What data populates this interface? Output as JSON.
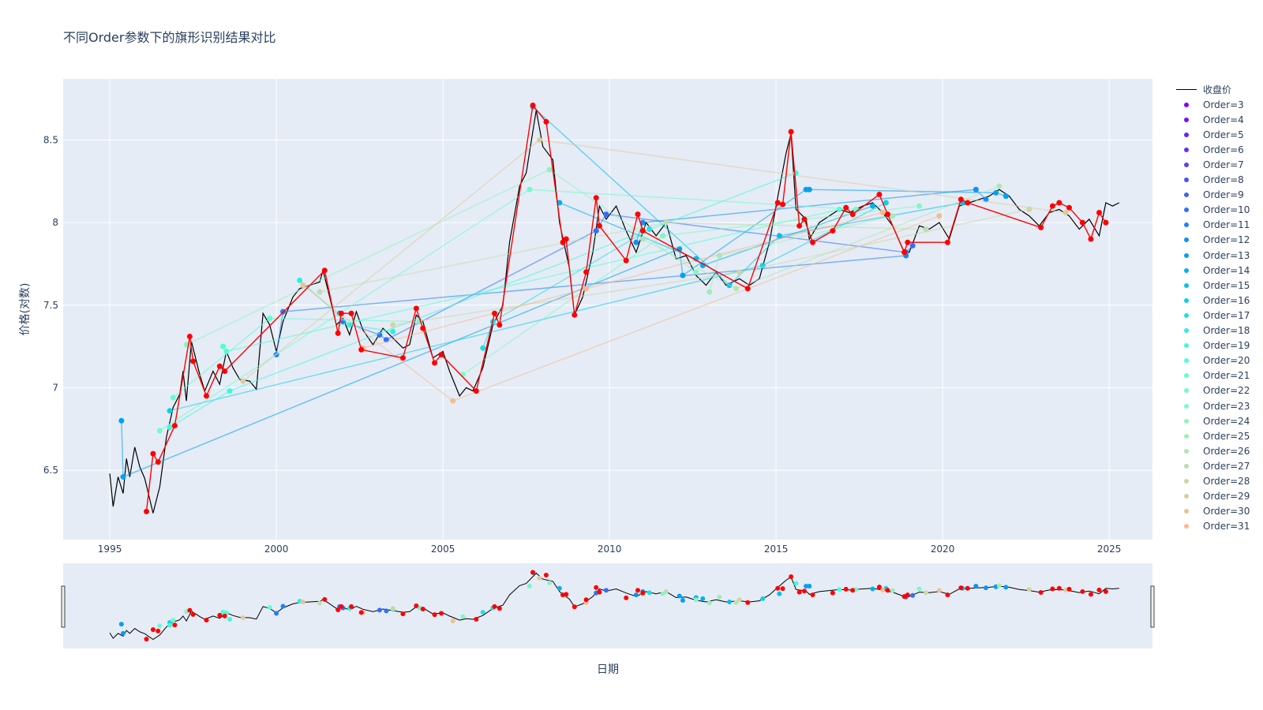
{
  "chart_data": {
    "type": "line",
    "title": "不同Order参数下的旗形识别结果对比",
    "xlabel": "日期",
    "ylabel": "价格(对数)",
    "x_ticks": [
      "1995",
      "2000",
      "2005",
      "2010",
      "2015",
      "2020",
      "2025"
    ],
    "y_ticks": [
      "6.5",
      "7",
      "7.5",
      "8",
      "8.5"
    ],
    "xlim": [
      1993.6,
      2026.3
    ],
    "ylim": [
      6.08,
      8.87
    ],
    "grid": true,
    "legend_position": "right",
    "rangeslider": true,
    "close_series": {
      "name": "收盘价",
      "color": "#000000",
      "points": [
        [
          1995.0,
          6.48
        ],
        [
          1995.1,
          6.28
        ],
        [
          1995.25,
          6.46
        ],
        [
          1995.4,
          6.36
        ],
        [
          1995.5,
          6.57
        ],
        [
          1995.6,
          6.46
        ],
        [
          1995.75,
          6.64
        ],
        [
          1995.9,
          6.52
        ],
        [
          1996.05,
          6.45
        ],
        [
          1996.3,
          6.24
        ],
        [
          1996.5,
          6.4
        ],
        [
          1996.7,
          6.7
        ],
        [
          1996.9,
          6.88
        ],
        [
          1997.1,
          6.96
        ],
        [
          1997.2,
          7.1
        ],
        [
          1997.3,
          6.92
        ],
        [
          1997.45,
          7.28
        ],
        [
          1997.7,
          7.08
        ],
        [
          1997.85,
          6.98
        ],
        [
          1998.1,
          7.1
        ],
        [
          1998.3,
          7.02
        ],
        [
          1998.5,
          7.22
        ],
        [
          1998.7,
          7.12
        ],
        [
          1998.9,
          7.05
        ],
        [
          1999.2,
          7.04
        ],
        [
          1999.4,
          6.99
        ],
        [
          1999.6,
          7.45
        ],
        [
          1999.8,
          7.38
        ],
        [
          2000.0,
          7.22
        ],
        [
          2000.2,
          7.4
        ],
        [
          2000.5,
          7.55
        ],
        [
          2000.7,
          7.6
        ],
        [
          2001.0,
          7.62
        ],
        [
          2001.3,
          7.64
        ],
        [
          2001.4,
          7.71
        ],
        [
          2001.6,
          7.55
        ],
        [
          2001.8,
          7.38
        ],
        [
          2002.0,
          7.42
        ],
        [
          2002.2,
          7.32
        ],
        [
          2002.4,
          7.46
        ],
        [
          2002.6,
          7.35
        ],
        [
          2002.9,
          7.26
        ],
        [
          2003.2,
          7.36
        ],
        [
          2003.5,
          7.3
        ],
        [
          2003.8,
          7.24
        ],
        [
          2004.0,
          7.26
        ],
        [
          2004.2,
          7.44
        ],
        [
          2004.4,
          7.4
        ],
        [
          2004.7,
          7.18
        ],
        [
          2005.0,
          7.22
        ],
        [
          2005.2,
          7.1
        ],
        [
          2005.5,
          6.95
        ],
        [
          2005.7,
          7.0
        ],
        [
          2005.9,
          6.98
        ],
        [
          2006.2,
          7.12
        ],
        [
          2006.5,
          7.38
        ],
        [
          2006.8,
          7.5
        ],
        [
          2007.0,
          7.88
        ],
        [
          2007.3,
          8.22
        ],
        [
          2007.5,
          8.3
        ],
        [
          2007.8,
          8.68
        ],
        [
          2008.0,
          8.46
        ],
        [
          2008.3,
          8.38
        ],
        [
          2008.5,
          8.0
        ],
        [
          2008.8,
          7.72
        ],
        [
          2008.95,
          7.44
        ],
        [
          2009.2,
          7.55
        ],
        [
          2009.5,
          7.82
        ],
        [
          2009.7,
          8.1
        ],
        [
          2009.9,
          8.02
        ],
        [
          2010.2,
          8.1
        ],
        [
          2010.5,
          7.95
        ],
        [
          2010.8,
          7.82
        ],
        [
          2011.1,
          8.0
        ],
        [
          2011.4,
          7.92
        ],
        [
          2011.7,
          8.0
        ],
        [
          2012.0,
          7.78
        ],
        [
          2012.3,
          7.8
        ],
        [
          2012.6,
          7.68
        ],
        [
          2012.9,
          7.62
        ],
        [
          2013.2,
          7.7
        ],
        [
          2013.5,
          7.62
        ],
        [
          2013.9,
          7.66
        ],
        [
          2014.2,
          7.62
        ],
        [
          2014.5,
          7.66
        ],
        [
          2014.8,
          7.88
        ],
        [
          2015.0,
          8.1
        ],
        [
          2015.3,
          8.42
        ],
        [
          2015.45,
          8.54
        ],
        [
          2015.6,
          8.08
        ],
        [
          2015.9,
          8.02
        ],
        [
          2016.0,
          7.9
        ],
        [
          2016.3,
          8.0
        ],
        [
          2016.6,
          8.04
        ],
        [
          2016.9,
          8.08
        ],
        [
          2017.2,
          8.06
        ],
        [
          2017.6,
          8.1
        ],
        [
          2017.9,
          8.12
        ],
        [
          2018.2,
          8.06
        ],
        [
          2018.5,
          7.98
        ],
        [
          2018.8,
          7.84
        ],
        [
          2019.0,
          7.82
        ],
        [
          2019.3,
          7.98
        ],
        [
          2019.6,
          7.96
        ],
        [
          2019.9,
          8.0
        ],
        [
          2020.2,
          7.9
        ],
        [
          2020.5,
          8.1
        ],
        [
          2020.8,
          8.12
        ],
        [
          2021.1,
          8.14
        ],
        [
          2021.4,
          8.16
        ],
        [
          2021.7,
          8.2
        ],
        [
          2022.0,
          8.16
        ],
        [
          2022.3,
          8.08
        ],
        [
          2022.6,
          8.04
        ],
        [
          2022.9,
          7.98
        ],
        [
          2023.2,
          8.06
        ],
        [
          2023.5,
          8.08
        ],
        [
          2023.8,
          8.04
        ],
        [
          2024.1,
          7.96
        ],
        [
          2024.4,
          8.02
        ],
        [
          2024.7,
          7.92
        ],
        [
          2024.9,
          8.12
        ],
        [
          2025.1,
          8.1
        ],
        [
          2025.3,
          8.12
        ]
      ]
    },
    "flag_series": [
      {
        "name": "Order=3",
        "color": "#8000ff",
        "points": []
      },
      {
        "name": "Order=4",
        "color": "#7610ff",
        "points": []
      },
      {
        "name": "Order=5",
        "color": "#6c20ff",
        "points": []
      },
      {
        "name": "Order=6",
        "color": "#6230fe",
        "points": []
      },
      {
        "name": "Order=7",
        "color": "#5840fd",
        "points": []
      },
      {
        "name": "Order=8",
        "color": "#4c50fc",
        "points": []
      },
      {
        "name": "Order=9",
        "color": "#405ffa",
        "points": []
      },
      {
        "name": "Order=10",
        "color": "#3070f9",
        "points": [
          [
            2003.1,
            7.32
          ],
          [
            2003.3,
            7.29
          ],
          [
            2009.6,
            7.95
          ],
          [
            2009.9,
            8.05
          ],
          [
            2018.9,
            7.82
          ],
          [
            2019.1,
            7.86
          ],
          [
            2001.9,
            7.45
          ],
          [
            2002.0,
            7.4
          ]
        ]
      },
      {
        "name": "Order=11",
        "color": "#2080f7",
        "points": [
          [
            2000.0,
            7.2
          ],
          [
            2000.2,
            7.46
          ],
          [
            2018.9,
            7.8
          ]
        ]
      },
      {
        "name": "Order=12",
        "color": "#1090f5",
        "points": [
          [
            2010.8,
            7.88
          ],
          [
            2011.0,
            8.0
          ],
          [
            2021.0,
            8.2
          ],
          [
            2021.3,
            8.14
          ]
        ]
      },
      {
        "name": "Order=13",
        "color": "#00a0f2",
        "points": [
          [
            1995.35,
            6.8
          ],
          [
            1995.4,
            6.46
          ],
          [
            2012.1,
            7.84
          ],
          [
            2012.2,
            7.68
          ],
          [
            2015.9,
            8.2
          ],
          [
            2016.0,
            8.2
          ],
          [
            2021.6,
            8.18
          ],
          [
            2021.9,
            8.16
          ]
        ]
      },
      {
        "name": "Order=14",
        "color": "#00b0ee",
        "points": [
          [
            2008.5,
            8.12
          ],
          [
            2012.6,
            7.78
          ],
          [
            2012.8,
            7.74
          ],
          [
            2017.9,
            8.1
          ]
        ]
      },
      {
        "name": "Order=15",
        "color": "#00c0ea",
        "points": [
          [
            2007.7,
            8.7
          ],
          [
            2013.6,
            7.62
          ],
          [
            2015.1,
            7.92
          ],
          [
            2020.6,
            8.12
          ]
        ]
      },
      {
        "name": "Order=16",
        "color": "#10cfe6",
        "points": [
          [
            1996.8,
            6.86
          ],
          [
            2014.6,
            7.74
          ],
          [
            2018.3,
            8.12
          ]
        ]
      },
      {
        "name": "Order=17",
        "color": "#20dfe2",
        "points": [
          [
            2006.2,
            7.24
          ],
          [
            2006.5,
            7.4
          ],
          [
            2011.2,
            7.96
          ]
        ]
      },
      {
        "name": "Order=18",
        "color": "#30eede",
        "points": [
          [
            2000.7,
            7.65
          ],
          [
            2002.2,
            7.38
          ],
          [
            2003.5,
            7.34
          ]
        ]
      },
      {
        "name": "Order=19",
        "color": "#40f9d9",
        "points": [
          [
            1996.8,
            6.76
          ],
          [
            1998.6,
            6.98
          ],
          [
            2015.6,
            8.3
          ]
        ]
      },
      {
        "name": "Order=20",
        "color": "#50ffd4",
        "points": [
          [
            1998.4,
            7.25
          ],
          [
            1998.5,
            7.22
          ],
          [
            2016.9,
            8.08
          ]
        ]
      },
      {
        "name": "Order=21",
        "color": "#60fecf",
        "points": [
          [
            1996.9,
            6.94
          ],
          [
            1999.8,
            7.42
          ],
          [
            2004.3,
            7.4
          ]
        ]
      },
      {
        "name": "Order=22",
        "color": "#70fcca",
        "points": [
          [
            1996.5,
            6.74
          ],
          [
            2007.6,
            8.2
          ],
          [
            2017.4,
            8.08
          ]
        ]
      },
      {
        "name": "Order=23",
        "color": "#80f8c4",
        "points": [
          [
            2005.6,
            7.08
          ],
          [
            2011.6,
            7.92
          ],
          [
            2019.3,
            8.1
          ]
        ]
      },
      {
        "name": "Order=24",
        "color": "#8ff3be",
        "points": [
          [
            1997.3,
            7.26
          ],
          [
            2008.2,
            8.32
          ],
          [
            2012.6,
            7.7
          ]
        ]
      },
      {
        "name": "Order=25",
        "color": "#9fedb8",
        "points": [
          [
            2013.0,
            7.58
          ],
          [
            2013.3,
            7.8
          ],
          [
            2018.5,
            8.04
          ]
        ]
      },
      {
        "name": "Order=26",
        "color": "#afe6b1",
        "points": [
          [
            2011.0,
            7.9
          ],
          [
            2013.8,
            7.6
          ],
          [
            2021.7,
            8.22
          ]
        ]
      },
      {
        "name": "Order=27",
        "color": "#bfdeaa",
        "points": [
          [
            2001.3,
            7.58
          ],
          [
            2011.7,
            8.0
          ],
          [
            2019.5,
            7.96
          ]
        ]
      },
      {
        "name": "Order=28",
        "color": "#cfd5a3",
        "points": [
          [
            2003.5,
            7.38
          ],
          [
            2013.9,
            7.7
          ],
          [
            2022.6,
            8.08
          ]
        ]
      },
      {
        "name": "Order=29",
        "color": "#dfcb9b",
        "points": [
          [
            1999.0,
            7.04
          ],
          [
            2007.9,
            8.5
          ],
          [
            2023.7,
            8.06
          ]
        ]
      },
      {
        "name": "Order=30",
        "color": "#efc093",
        "points": [
          [
            2000.8,
            7.62
          ],
          [
            2005.3,
            6.92
          ],
          [
            2019.9,
            8.04
          ]
        ]
      },
      {
        "name": "Order=31",
        "color": "#ffb58a",
        "points": [
          [
            2002.6,
            7.24
          ],
          [
            2009.3,
            7.6
          ],
          [
            2018.2,
            8.06
          ]
        ]
      }
    ],
    "hidden_legend_entries_note": "",
    "red_series": {
      "color": "#ff0000",
      "points": [
        [
          1996.1,
          6.25
        ],
        [
          1996.3,
          6.6
        ],
        [
          1996.45,
          6.55
        ],
        [
          1996.95,
          6.77
        ],
        [
          1997.4,
          7.31
        ],
        [
          1997.5,
          7.16
        ],
        [
          1997.9,
          6.95
        ],
        [
          1998.3,
          7.13
        ],
        [
          1998.45,
          7.1
        ],
        [
          2001.45,
          7.71
        ],
        [
          2001.85,
          7.33
        ],
        [
          2001.95,
          7.45
        ],
        [
          2002.55,
          7.23
        ],
        [
          2002.25,
          7.45
        ],
        [
          2003.8,
          7.18
        ],
        [
          2004.2,
          7.48
        ],
        [
          2004.4,
          7.36
        ],
        [
          2004.75,
          7.15
        ],
        [
          2004.95,
          7.2
        ],
        [
          2006.0,
          6.98
        ],
        [
          2006.55,
          7.45
        ],
        [
          2006.7,
          7.38
        ],
        [
          2007.7,
          8.71
        ],
        [
          2008.1,
          8.61
        ],
        [
          2008.6,
          7.88
        ],
        [
          2008.7,
          7.9
        ],
        [
          2008.95,
          7.44
        ],
        [
          2009.3,
          7.7
        ],
        [
          2009.6,
          8.15
        ],
        [
          2009.7,
          7.98
        ],
        [
          2010.5,
          7.77
        ],
        [
          2010.85,
          8.05
        ],
        [
          2011.0,
          7.95
        ],
        [
          2014.15,
          7.6
        ],
        [
          2015.05,
          8.12
        ],
        [
          2015.2,
          8.11
        ],
        [
          2015.45,
          8.55
        ],
        [
          2015.7,
          7.98
        ],
        [
          2015.85,
          8.02
        ],
        [
          2016.1,
          7.88
        ],
        [
          2016.7,
          7.95
        ],
        [
          2017.1,
          8.09
        ],
        [
          2017.3,
          8.05
        ],
        [
          2018.1,
          8.17
        ],
        [
          2018.35,
          8.05
        ],
        [
          2018.85,
          7.82
        ],
        [
          2018.95,
          7.88
        ],
        [
          2020.15,
          7.88
        ],
        [
          2020.55,
          8.14
        ],
        [
          2020.75,
          8.12
        ],
        [
          2022.95,
          7.97
        ],
        [
          2023.3,
          8.1
        ],
        [
          2023.5,
          8.12
        ],
        [
          2023.8,
          8.09
        ],
        [
          2024.2,
          8.0
        ],
        [
          2024.45,
          7.9
        ],
        [
          2024.7,
          8.06
        ],
        [
          2024.9,
          8.0
        ]
      ]
    }
  },
  "legend": {
    "close_label": "收盘价",
    "items": [
      "Order=3",
      "Order=4",
      "Order=5",
      "Order=6",
      "Order=7",
      "Order=8",
      "Order=9",
      "Order=10",
      "Order=11",
      "Order=12",
      "Order=13",
      "Order=14",
      "Order=15",
      "Order=16",
      "Order=17",
      "Order=18",
      "Order=19",
      "Order=20",
      "Order=21",
      "Order=22",
      "Order=23",
      "Order=24",
      "Order=25",
      "Order=26",
      "Order=27",
      "Order=28",
      "Order=29",
      "Order=30",
      "Order=31"
    ],
    "colors": [
      "#8000ff",
      "#7610ff",
      "#6c20ff",
      "#6230fe",
      "#5840fd",
      "#4c50fc",
      "#405ffa",
      "#3070f9",
      "#2080f7",
      "#1090f5",
      "#00a0f2",
      "#00b0ee",
      "#00c0ea",
      "#10cfe6",
      "#20dfe2",
      "#30eede",
      "#40f9d9",
      "#50ffd4",
      "#60fecf",
      "#70fcca",
      "#80f8c4",
      "#8ff3be",
      "#9fedb8",
      "#afe6b1",
      "#bfdeaa",
      "#cfd5a3",
      "#dfcb9b",
      "#efc093",
      "#ffb58a"
    ]
  }
}
